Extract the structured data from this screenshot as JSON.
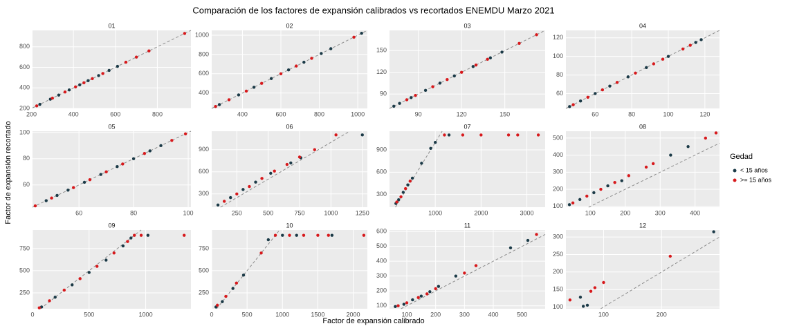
{
  "figure": {
    "title": "Comparación de los factores de expansión calibrados vs recortados ENEMDU Marzo 2021",
    "xlabel": "Factor de expansión calibrado",
    "ylabel": "Factor de expansión recortado",
    "legend_title": "Gedad"
  },
  "chart_data": [
    {
      "type": "scatter",
      "title": "01",
      "identity_line": true,
      "xlim": [
        205,
        960
      ],
      "ylim": [
        200,
        960
      ],
      "xticks": [
        200,
        400,
        600,
        800
      ],
      "yticks": [
        200,
        400,
        600,
        800
      ],
      "series": [
        {
          "name": "< 15 años",
          "color": "#1b3a47",
          "x": [
            240,
            290,
            330,
            380,
            430,
            470,
            520,
            570,
            610
          ],
          "y": [
            240,
            290,
            330,
            380,
            430,
            470,
            520,
            570,
            610
          ]
        },
        {
          "name": ">= 15 años",
          "color": "#d7191c",
          "x": [
            225,
            300,
            360,
            410,
            450,
            490,
            540,
            650,
            700,
            760,
            930
          ],
          "y": [
            225,
            300,
            360,
            410,
            450,
            490,
            540,
            650,
            700,
            760,
            930
          ]
        }
      ]
    },
    {
      "type": "scatter",
      "title": "02",
      "identity_line": true,
      "xlim": [
        240,
        1050
      ],
      "ylim": [
        240,
        1050
      ],
      "xticks": [
        400,
        600,
        800,
        1000
      ],
      "yticks": [
        400,
        600,
        800,
        1000
      ],
      "series": [
        {
          "name": "< 15 años",
          "color": "#1b3a47",
          "x": [
            280,
            380,
            460,
            550,
            640,
            720,
            810,
            860,
            1020
          ],
          "y": [
            280,
            380,
            460,
            550,
            640,
            720,
            810,
            860,
            1020
          ]
        },
        {
          "name": ">= 15 años",
          "color": "#d7191c",
          "x": [
            260,
            330,
            420,
            500,
            600,
            680,
            760,
            980
          ],
          "y": [
            260,
            330,
            420,
            500,
            600,
            680,
            760,
            980
          ]
        }
      ]
    },
    {
      "type": "scatter",
      "title": "03",
      "identity_line": true,
      "xlim": [
        70,
        178
      ],
      "ylim": [
        70,
        178
      ],
      "xticks": [
        90,
        120,
        150
      ],
      "yticks": [
        90,
        120,
        150
      ],
      "series": [
        {
          "name": "< 15 años",
          "color": "#1b3a47",
          "x": [
            73,
            77,
            85,
            95,
            105,
            115,
            128,
            140,
            148
          ],
          "y": [
            73,
            77,
            85,
            95,
            105,
            115,
            128,
            140,
            148
          ]
        },
        {
          "name": ">= 15 años",
          "color": "#d7191c",
          "x": [
            82,
            88,
            100,
            110,
            120,
            130,
            138,
            160,
            172
          ],
          "y": [
            82,
            88,
            100,
            110,
            120,
            130,
            138,
            160,
            172
          ]
        }
      ]
    },
    {
      "type": "scatter",
      "title": "04",
      "identity_line": true,
      "xlim": [
        44,
        128
      ],
      "ylim": [
        44,
        128
      ],
      "xticks": [
        60,
        80,
        100,
        120
      ],
      "yticks": [
        60,
        80,
        100,
        120
      ],
      "series": [
        {
          "name": "< 15 años",
          "color": "#1b3a47",
          "x": [
            46,
            52,
            60,
            68,
            78,
            88,
            100,
            115,
            118
          ],
          "y": [
            46,
            52,
            60,
            68,
            78,
            88,
            100,
            115,
            118
          ]
        },
        {
          "name": ">= 15 años",
          "color": "#d7191c",
          "x": [
            48,
            56,
            64,
            72,
            82,
            92,
            97,
            108,
            112
          ],
          "y": [
            48,
            56,
            64,
            72,
            82,
            92,
            97,
            108,
            112
          ]
        }
      ]
    },
    {
      "type": "scatter",
      "title": "05",
      "identity_line": true,
      "xlim": [
        43,
        101
      ],
      "ylim": [
        43,
        101
      ],
      "xticks": [
        60,
        80,
        100
      ],
      "yticks": [
        60,
        80,
        100
      ],
      "series": [
        {
          "name": "< 15 años",
          "color": "#1b3a47",
          "x": [
            48,
            52,
            56,
            62,
            68,
            74,
            80,
            86,
            90
          ],
          "y": [
            48,
            52,
            56,
            62,
            68,
            74,
            80,
            86,
            90
          ]
        },
        {
          "name": ">= 15 años",
          "color": "#d7191c",
          "x": [
            44,
            50,
            58,
            64,
            70,
            76,
            84,
            94,
            99
          ],
          "y": [
            44,
            50,
            58,
            64,
            70,
            76,
            84,
            94,
            99
          ]
        }
      ]
    },
    {
      "type": "scatter",
      "title": "06",
      "identity_line": true,
      "xlim": [
        50,
        1290
      ],
      "ylim": [
        120,
        1150
      ],
      "xticks": [
        250,
        500,
        750,
        1000,
        1250
      ],
      "yticks": [
        300,
        600,
        900
      ],
      "series": [
        {
          "name": "< 15 años",
          "color": "#1b3a47",
          "x": [
            100,
            200,
            300,
            400,
            520,
            680,
            760,
            1250
          ],
          "y": [
            150,
            250,
            360,
            460,
            580,
            720,
            790,
            1100
          ]
        },
        {
          "name": ">= 15 años",
          "color": "#d7191c",
          "x": [
            150,
            250,
            350,
            450,
            550,
            650,
            750,
            870,
            1040
          ],
          "y": [
            200,
            300,
            400,
            510,
            610,
            700,
            800,
            900,
            1100
          ]
        }
      ]
    },
    {
      "type": "scatter",
      "title": "07",
      "identity_line": true,
      "xlim": [
        0,
        3400
      ],
      "ylim": [
        130,
        1150
      ],
      "xticks": [
        1000,
        2000,
        3000
      ],
      "yticks": [
        300,
        600,
        900
      ],
      "series": [
        {
          "name": "< 15 años",
          "color": "#1b3a47",
          "x": [
            140,
            200,
            300,
            400,
            500,
            700,
            900,
            1000,
            1300
          ],
          "y": [
            180,
            230,
            330,
            430,
            520,
            720,
            920,
            1000,
            1100
          ]
        },
        {
          "name": ">= 15 años",
          "color": "#d7191c",
          "x": [
            160,
            250,
            350,
            450,
            1200,
            1600,
            2000,
            2600,
            2800,
            3250
          ],
          "y": [
            200,
            270,
            380,
            480,
            1100,
            1100,
            1100,
            1100,
            1100,
            1100
          ]
        }
      ]
    },
    {
      "type": "scatter",
      "title": "08",
      "identity_line": true,
      "xlim": [
        30,
        470
      ],
      "ylim": [
        95,
        540
      ],
      "xticks": [
        100,
        200,
        300,
        400
      ],
      "yticks": [
        100,
        200,
        300,
        400,
        500
      ],
      "series": [
        {
          "name": "< 15 años",
          "color": "#1b3a47",
          "x": [
            40,
            70,
            110,
            150,
            190,
            330,
            380
          ],
          "y": [
            110,
            140,
            180,
            220,
            250,
            400,
            450
          ]
        },
        {
          "name": ">= 15 años",
          "color": "#d7191c",
          "x": [
            50,
            90,
            130,
            170,
            210,
            260,
            280,
            430,
            460
          ],
          "y": [
            120,
            160,
            200,
            240,
            280,
            330,
            350,
            500,
            530
          ]
        }
      ]
    },
    {
      "type": "scatter",
      "title": "09",
      "identity_line": true,
      "xlim": [
        0,
        1400
      ],
      "ylim": [
        70,
        960
      ],
      "xticks": [
        0,
        500,
        1000
      ],
      "yticks": [
        250,
        500,
        750
      ],
      "series": [
        {
          "name": "< 15 años",
          "color": "#1b3a47",
          "x": [
            80,
            200,
            350,
            500,
            650,
            800,
            870,
            1020
          ],
          "y": [
            90,
            200,
            340,
            480,
            620,
            780,
            870,
            900
          ]
        },
        {
          "name": ">= 15 años",
          "color": "#d7191c",
          "x": [
            60,
            150,
            280,
            420,
            570,
            720,
            840,
            900,
            960,
            1340
          ],
          "y": [
            80,
            160,
            280,
            410,
            550,
            700,
            830,
            900,
            900,
            900
          ]
        }
      ]
    },
    {
      "type": "scatter",
      "title": "10",
      "identity_line": true,
      "xlim": [
        0,
        2200
      ],
      "ylim": [
        70,
        960
      ],
      "xticks": [
        0,
        500,
        1000,
        1500,
        2000
      ],
      "yticks": [
        250,
        500,
        750
      ],
      "series": [
        {
          "name": "< 15 años",
          "color": "#1b3a47",
          "x": [
            60,
            150,
            300,
            450,
            800,
            1000,
            1200,
            1700
          ],
          "y": [
            90,
            150,
            300,
            450,
            850,
            900,
            900,
            900
          ]
        },
        {
          "name": ">= 15 años",
          "color": "#d7191c",
          "x": [
            80,
            200,
            350,
            700,
            900,
            1100,
            1300,
            1500,
            1650,
            2150
          ],
          "y": [
            110,
            210,
            360,
            700,
            900,
            900,
            900,
            900,
            900,
            900
          ]
        }
      ]
    },
    {
      "type": "scatter",
      "title": "11",
      "identity_line": true,
      "xlim": [
        40,
        580
      ],
      "ylim": [
        80,
        610
      ],
      "xticks": [
        100,
        200,
        300,
        400,
        500
      ],
      "yticks": [
        100,
        200,
        300,
        400,
        500,
        600
      ],
      "series": [
        {
          "name": "< 15 años",
          "color": "#1b3a47",
          "x": [
            60,
            90,
            120,
            150,
            180,
            210,
            270,
            460,
            520
          ],
          "y": [
            95,
            110,
            140,
            165,
            195,
            230,
            300,
            490,
            540
          ]
        },
        {
          "name": ">= 15 años",
          "color": "#d7191c",
          "x": [
            70,
            100,
            140,
            170,
            200,
            300,
            340,
            550
          ],
          "y": [
            100,
            120,
            155,
            180,
            215,
            320,
            370,
            580
          ]
        }
      ]
    },
    {
      "type": "scatter",
      "title": "12",
      "identity_line": true,
      "xlim": [
        35,
        300
      ],
      "ylim": [
        95,
        320
      ],
      "xticks": [
        100,
        200
      ],
      "yticks": [
        100,
        150,
        200,
        250,
        300
      ],
      "series": [
        {
          "name": "< 15 años",
          "color": "#1b3a47",
          "x": [
            60,
            65,
            72,
            290
          ],
          "y": [
            128,
            102,
            105,
            315
          ]
        },
        {
          "name": ">= 15 años",
          "color": "#d7191c",
          "x": [
            42,
            78,
            85,
            100,
            215
          ],
          "y": [
            120,
            145,
            155,
            170,
            245
          ]
        }
      ]
    }
  ]
}
